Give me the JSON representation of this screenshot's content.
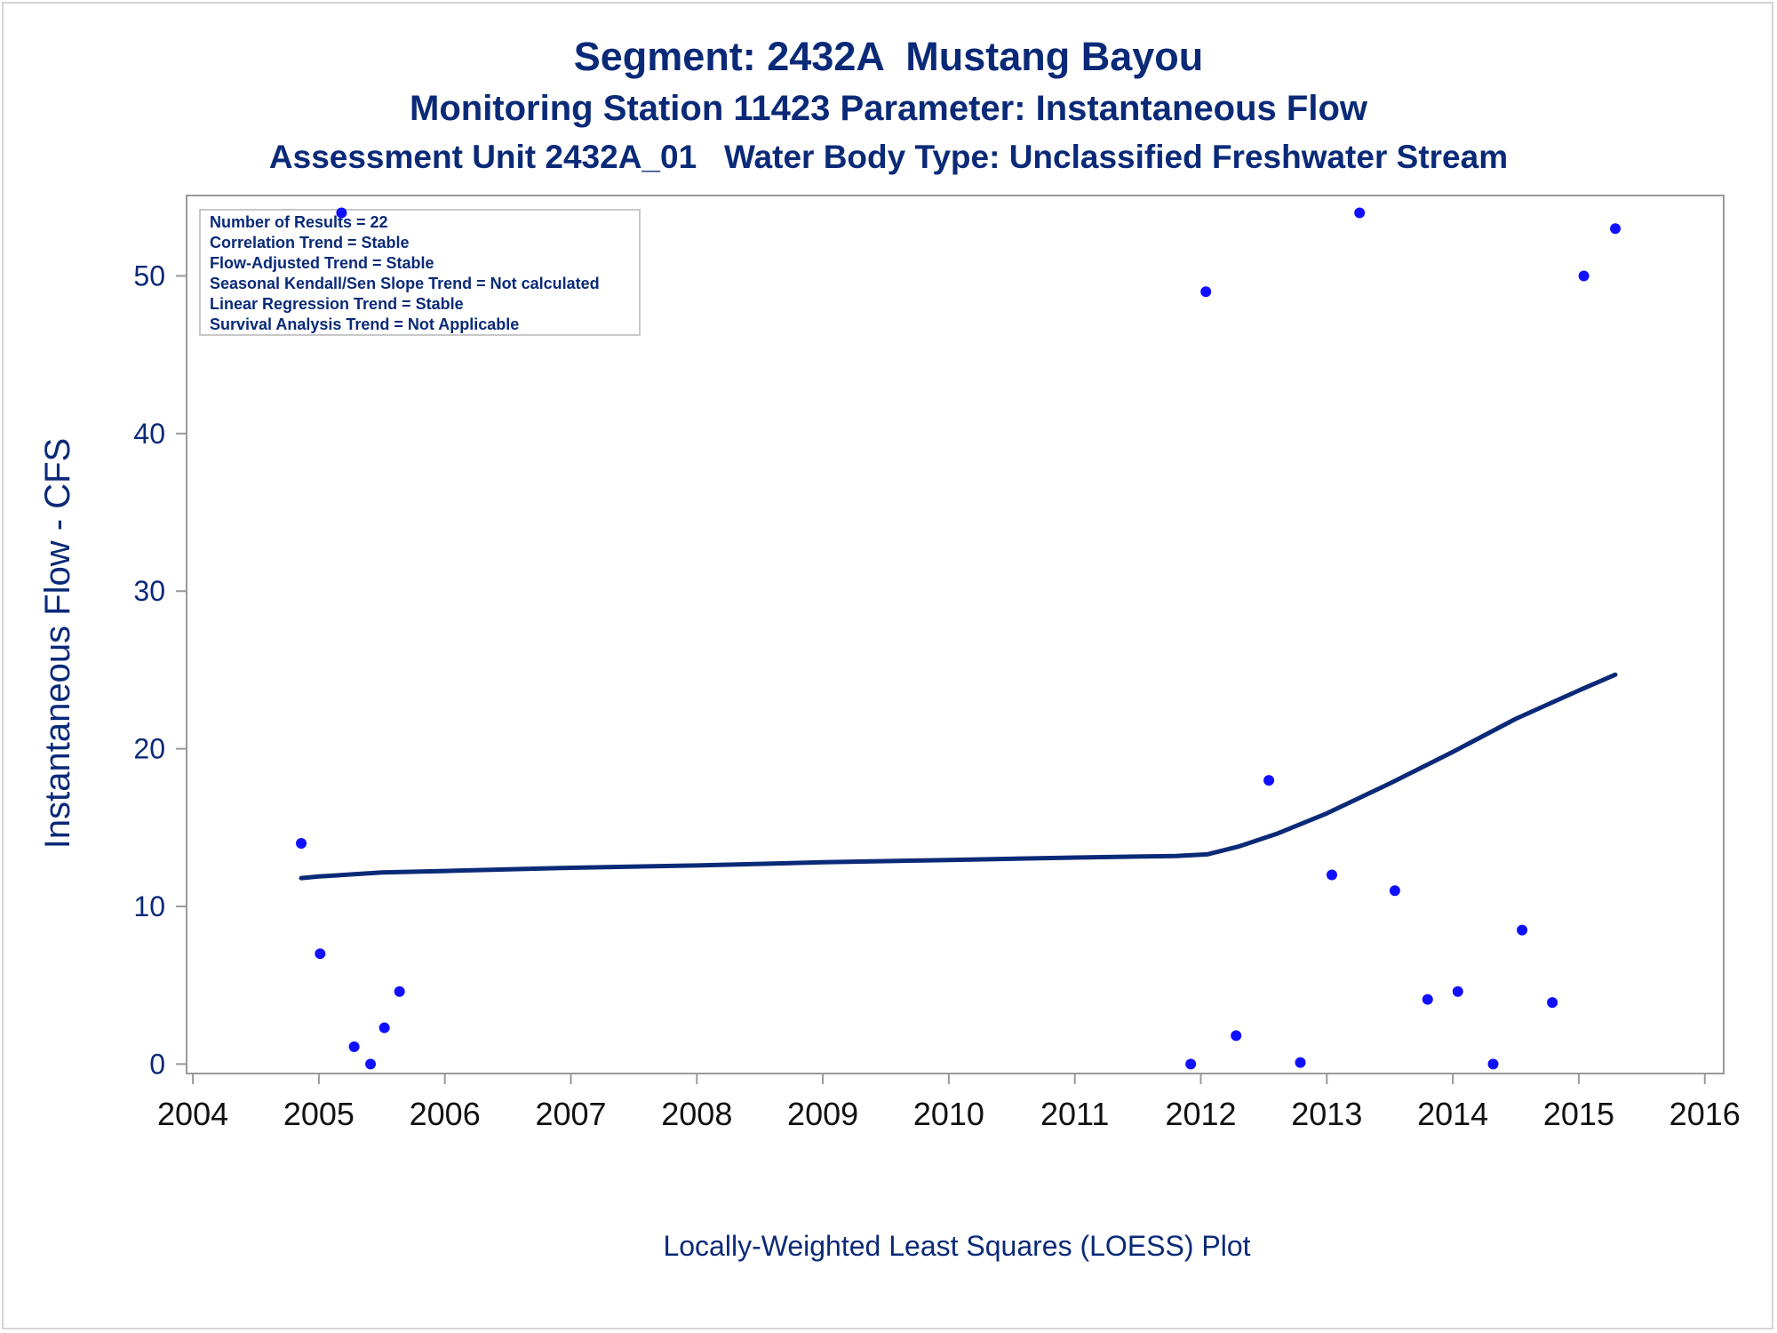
{
  "colors": {
    "title": "#0a2a78",
    "axis_text": "#0a2a78",
    "tick_text": "#111111",
    "points": "#1010ff",
    "loess_line": "#0a2a78",
    "frame": "#9a9a9a",
    "legend_border": "#c8c8c8"
  },
  "titles": {
    "line1": "Segment: 2432A  Mustang Bayou",
    "line2": "Monitoring Station 11423 Parameter: Instantaneous Flow",
    "line3": "Assessment Unit 2432A_01   Water Body Type: Unclassified Freshwater Stream"
  },
  "chart_data": {
    "type": "scatter",
    "title": "Segment: 2432A  Mustang Bayou",
    "xlabel": "",
    "ylabel": "Instantaneous Flow - CFS",
    "xlim": [
      2003.95,
      2016.15
    ],
    "ylim": [
      -0.6,
      55.1
    ],
    "x_ticks": [
      2004,
      2005,
      2006,
      2007,
      2008,
      2009,
      2010,
      2011,
      2012,
      2013,
      2014,
      2015,
      2016
    ],
    "y_ticks": [
      0,
      10,
      20,
      30,
      40,
      50
    ],
    "footnote": "Locally-Weighted Least Squares (LOESS) Plot",
    "legend": [
      "Number of Results = 22",
      "Correlation Trend = Stable",
      "Flow-Adjusted Trend = Stable",
      "Seasonal Kendall/Sen Slope Trend = Not calculated",
      "Linear Regression Trend = Stable",
      "Survival Analysis Trend = Not Applicable"
    ],
    "series": [
      {
        "name": "Observations",
        "kind": "scatter",
        "points": [
          [
            2004.86,
            14.0
          ],
          [
            2005.01,
            7.0
          ],
          [
            2005.18,
            54.0
          ],
          [
            2005.28,
            1.1
          ],
          [
            2005.41,
            0.0
          ],
          [
            2005.52,
            2.3
          ],
          [
            2005.64,
            4.6
          ],
          [
            2011.92,
            0.0
          ],
          [
            2012.04,
            49.0
          ],
          [
            2012.28,
            1.8
          ],
          [
            2012.54,
            18.0
          ],
          [
            2012.79,
            0.1
          ],
          [
            2013.04,
            12.0
          ],
          [
            2013.26,
            54.0
          ],
          [
            2013.54,
            11.0
          ],
          [
            2013.8,
            4.1
          ],
          [
            2014.04,
            4.6
          ],
          [
            2014.32,
            0.0
          ],
          [
            2014.55,
            8.5
          ],
          [
            2014.79,
            3.9
          ],
          [
            2015.04,
            50.0
          ],
          [
            2015.29,
            53.0
          ]
        ]
      },
      {
        "name": "LOESS",
        "kind": "line",
        "points": [
          [
            2004.86,
            11.8
          ],
          [
            2005.0,
            11.9
          ],
          [
            2005.5,
            12.15
          ],
          [
            2006.0,
            12.25
          ],
          [
            2007.0,
            12.45
          ],
          [
            2008.0,
            12.6
          ],
          [
            2009.0,
            12.8
          ],
          [
            2010.0,
            12.95
          ],
          [
            2011.0,
            13.1
          ],
          [
            2011.8,
            13.2
          ],
          [
            2012.05,
            13.3
          ],
          [
            2012.3,
            13.8
          ],
          [
            2012.6,
            14.6
          ],
          [
            2013.0,
            15.9
          ],
          [
            2013.5,
            17.8
          ],
          [
            2014.0,
            19.8
          ],
          [
            2014.5,
            21.9
          ],
          [
            2015.0,
            23.7
          ],
          [
            2015.29,
            24.7
          ]
        ]
      }
    ]
  }
}
